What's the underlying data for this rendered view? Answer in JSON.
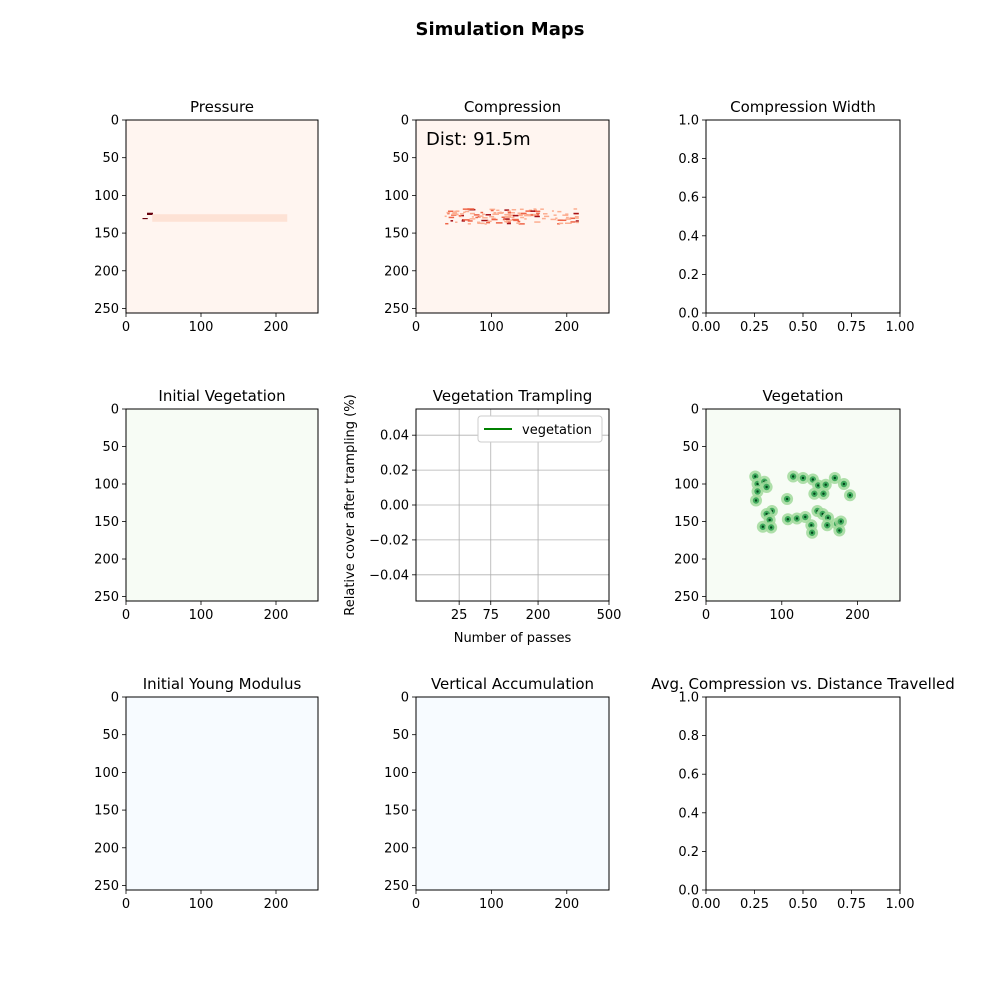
{
  "figure": {
    "suptitle": "Simulation Maps"
  },
  "colors": {
    "reds_bg": "#fff5f0",
    "greens_bg": "#f7fcf5",
    "blues_bg": "#f7fbff",
    "line_green": "#008000",
    "grid": "#b0b0b0",
    "text": "#000000"
  },
  "chart_data": [
    {
      "id": "pressure",
      "type": "heatmap",
      "title": "Pressure",
      "colormap": "Reds",
      "xlim": [
        0,
        256
      ],
      "ylim": [
        256,
        0
      ],
      "xticks": [
        0,
        100,
        200
      ],
      "yticks": [
        0,
        50,
        100,
        150,
        200,
        250
      ],
      "annotation": "",
      "hotspots": [
        {
          "x": 28,
          "y": 123,
          "w": 8,
          "h": 3,
          "intensity": 1.0
        },
        {
          "x": 22,
          "y": 130,
          "w": 7,
          "h": 1.5,
          "intensity": 1.0
        },
        {
          "x": 35,
          "y": 125,
          "w": 180,
          "h": 10,
          "intensity": 0.08
        }
      ]
    },
    {
      "id": "compression",
      "type": "heatmap",
      "title": "Compression",
      "colormap": "Reds",
      "xlim": [
        0,
        256
      ],
      "ylim": [
        256,
        0
      ],
      "xticks": [
        0,
        100,
        200
      ],
      "yticks": [
        0,
        50,
        100,
        150,
        200,
        250
      ],
      "annotation": "Dist: 91.5m",
      "band": {
        "x0": 38,
        "x1": 218,
        "y0": 117,
        "y1": 137
      }
    },
    {
      "id": "compression_width",
      "type": "line",
      "title": "Compression Width",
      "xlim": [
        0,
        1
      ],
      "ylim": [
        0,
        1
      ],
      "xticks": [
        0,
        0.25,
        0.5,
        0.75,
        1.0
      ],
      "yticks": [
        0,
        0.2,
        0.4,
        0.6,
        0.8,
        1.0
      ],
      "xtick_labels": [
        "0.00",
        "0.25",
        "0.50",
        "0.75",
        "1.00"
      ],
      "ytick_labels": [
        "0.0",
        "0.2",
        "0.4",
        "0.6",
        "0.8",
        "1.0"
      ],
      "series": []
    },
    {
      "id": "initial_vegetation",
      "type": "heatmap",
      "title": "Initial Vegetation",
      "colormap": "Greens",
      "xlim": [
        0,
        256
      ],
      "ylim": [
        256,
        0
      ],
      "xticks": [
        0,
        100,
        200
      ],
      "yticks": [
        0,
        50,
        100,
        150,
        200,
        250
      ]
    },
    {
      "id": "vegetation_trampling",
      "type": "line",
      "title": "Vegetation Trampling",
      "xlabel": "Number of passes",
      "ylabel": "Relative cover after trampling (%)",
      "xlim": [
        0,
        500
      ],
      "ylim": [
        -0.055,
        0.055
      ],
      "xticks": [
        25,
        75,
        200,
        500
      ],
      "yticks": [
        -0.04,
        -0.02,
        0.0,
        0.02,
        0.04
      ],
      "xtick_labels": [
        "25",
        "75",
        "200",
        "500"
      ],
      "ytick_labels": [
        "−0.04",
        "−0.02",
        "0.00",
        "0.02",
        "0.04"
      ],
      "xscale": "sqrt",
      "grid": true,
      "legend_loc": "upper right",
      "series": [
        {
          "name": "vegetation",
          "color": "#008000",
          "x": [],
          "y": []
        }
      ]
    },
    {
      "id": "vegetation",
      "type": "heatmap",
      "title": "Vegetation",
      "colormap": "Greens",
      "xlim": [
        0,
        256
      ],
      "ylim": [
        256,
        0
      ],
      "xticks": [
        0,
        100,
        200
      ],
      "yticks": [
        0,
        50,
        100,
        150,
        200,
        250
      ],
      "plants": [
        [
          65,
          90
        ],
        [
          68,
          100
        ],
        [
          77,
          97
        ],
        [
          80,
          104
        ],
        [
          68,
          110
        ],
        [
          66,
          122
        ],
        [
          115,
          90
        ],
        [
          128,
          92
        ],
        [
          141,
          94
        ],
        [
          148,
          102
        ],
        [
          158,
          101
        ],
        [
          170,
          92
        ],
        [
          182,
          100
        ],
        [
          190,
          115
        ],
        [
          107,
          120
        ],
        [
          143,
          113
        ],
        [
          155,
          113
        ],
        [
          87,
          136
        ],
        [
          80,
          140
        ],
        [
          84,
          148
        ],
        [
          75,
          157
        ],
        [
          86,
          158
        ],
        [
          108,
          147
        ],
        [
          120,
          146
        ],
        [
          131,
          144
        ],
        [
          147,
          136
        ],
        [
          154,
          140
        ],
        [
          161,
          145
        ],
        [
          173,
          153
        ],
        [
          176,
          162
        ],
        [
          160,
          155
        ],
        [
          139,
          155
        ],
        [
          140,
          165
        ],
        [
          178,
          150
        ]
      ]
    },
    {
      "id": "initial_young_modulus",
      "type": "heatmap",
      "title": "Initial Young Modulus",
      "colormap": "Blues",
      "xlim": [
        0,
        256
      ],
      "ylim": [
        256,
        0
      ],
      "xticks": [
        0,
        100,
        200
      ],
      "yticks": [
        0,
        50,
        100,
        150,
        200,
        250
      ]
    },
    {
      "id": "vertical_accumulation",
      "type": "heatmap",
      "title": "Vertical Accumulation",
      "colormap": "Blues",
      "xlim": [
        0,
        256
      ],
      "ylim": [
        256,
        0
      ],
      "xticks": [
        0,
        100,
        200
      ],
      "yticks": [
        0,
        50,
        100,
        150,
        200,
        250
      ]
    },
    {
      "id": "avg_compression",
      "type": "line",
      "title": "Avg. Compression vs. Distance Travelled",
      "xlim": [
        0,
        1
      ],
      "ylim": [
        0,
        1
      ],
      "xticks": [
        0,
        0.25,
        0.5,
        0.75,
        1.0
      ],
      "yticks": [
        0,
        0.2,
        0.4,
        0.6,
        0.8,
        1.0
      ],
      "xtick_labels": [
        "0.00",
        "0.25",
        "0.50",
        "0.75",
        "1.00"
      ],
      "ytick_labels": [
        "0.0",
        "0.2",
        "0.4",
        "0.6",
        "0.8",
        "1.0"
      ],
      "series": []
    }
  ]
}
